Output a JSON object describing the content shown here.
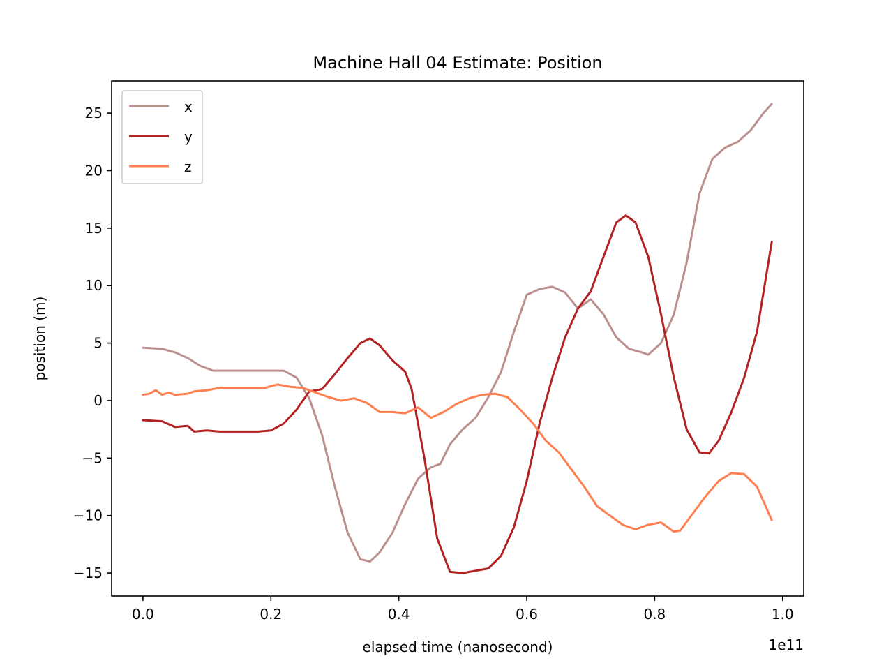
{
  "chart_data": {
    "type": "line",
    "title": "Machine Hall 04 Estimate: Position",
    "xlabel": "elapsed time (nanosecond)",
    "ylabel": "position (m)",
    "x_offset_label": "1e11",
    "xlim": [
      -0.049,
      1.033
    ],
    "ylim": [
      -17.0,
      27.8
    ],
    "x_ticks": [
      0.0,
      0.2,
      0.4,
      0.6,
      0.8,
      1.0
    ],
    "x_tick_labels": [
      "0.0",
      "0.2",
      "0.4",
      "0.6",
      "0.8",
      "1.0"
    ],
    "y_ticks": [
      -15,
      -10,
      -5,
      0,
      5,
      10,
      15,
      20,
      25
    ],
    "y_tick_labels": [
      "−15",
      "−10",
      "−5",
      "0",
      "5",
      "10",
      "15",
      "20",
      "25"
    ],
    "grid": false,
    "legend_position": "upper-left",
    "series": [
      {
        "name": "x",
        "color": "#bc8f8f",
        "points": [
          [
            0.0,
            4.6
          ],
          [
            0.03,
            4.5
          ],
          [
            0.05,
            4.2
          ],
          [
            0.07,
            3.7
          ],
          [
            0.09,
            3.0
          ],
          [
            0.11,
            2.6
          ],
          [
            0.14,
            2.6
          ],
          [
            0.17,
            2.6
          ],
          [
            0.2,
            2.6
          ],
          [
            0.22,
            2.6
          ],
          [
            0.24,
            2.0
          ],
          [
            0.26,
            0.2
          ],
          [
            0.28,
            -3.0
          ],
          [
            0.3,
            -7.5
          ],
          [
            0.32,
            -11.5
          ],
          [
            0.34,
            -13.8
          ],
          [
            0.355,
            -14.0
          ],
          [
            0.37,
            -13.2
          ],
          [
            0.39,
            -11.5
          ],
          [
            0.41,
            -9.0
          ],
          [
            0.43,
            -6.8
          ],
          [
            0.45,
            -5.8
          ],
          [
            0.465,
            -5.5
          ],
          [
            0.48,
            -3.8
          ],
          [
            0.5,
            -2.5
          ],
          [
            0.52,
            -1.5
          ],
          [
            0.54,
            0.3
          ],
          [
            0.56,
            2.5
          ],
          [
            0.58,
            6.0
          ],
          [
            0.6,
            9.2
          ],
          [
            0.62,
            9.7
          ],
          [
            0.64,
            9.9
          ],
          [
            0.66,
            9.4
          ],
          [
            0.68,
            8.0
          ],
          [
            0.7,
            8.8
          ],
          [
            0.72,
            7.5
          ],
          [
            0.74,
            5.5
          ],
          [
            0.76,
            4.5
          ],
          [
            0.78,
            4.2
          ],
          [
            0.79,
            4.0
          ],
          [
            0.81,
            5.0
          ],
          [
            0.83,
            7.5
          ],
          [
            0.85,
            12.0
          ],
          [
            0.87,
            18.0
          ],
          [
            0.89,
            21.0
          ],
          [
            0.91,
            22.0
          ],
          [
            0.93,
            22.5
          ],
          [
            0.95,
            23.5
          ],
          [
            0.97,
            25.0
          ],
          [
            0.983,
            25.8
          ]
        ]
      },
      {
        "name": "y",
        "color": "#b22222",
        "points": [
          [
            0.0,
            -1.7
          ],
          [
            0.03,
            -1.8
          ],
          [
            0.05,
            -2.3
          ],
          [
            0.07,
            -2.2
          ],
          [
            0.08,
            -2.7
          ],
          [
            0.1,
            -2.6
          ],
          [
            0.12,
            -2.7
          ],
          [
            0.15,
            -2.7
          ],
          [
            0.18,
            -2.7
          ],
          [
            0.2,
            -2.6
          ],
          [
            0.22,
            -2.0
          ],
          [
            0.24,
            -0.8
          ],
          [
            0.26,
            0.8
          ],
          [
            0.28,
            1.0
          ],
          [
            0.3,
            2.3
          ],
          [
            0.32,
            3.7
          ],
          [
            0.34,
            5.0
          ],
          [
            0.355,
            5.4
          ],
          [
            0.37,
            4.8
          ],
          [
            0.39,
            3.5
          ],
          [
            0.41,
            2.5
          ],
          [
            0.42,
            1.0
          ],
          [
            0.44,
            -5.0
          ],
          [
            0.46,
            -12.0
          ],
          [
            0.48,
            -14.9
          ],
          [
            0.5,
            -15.0
          ],
          [
            0.52,
            -14.8
          ],
          [
            0.54,
            -14.6
          ],
          [
            0.56,
            -13.5
          ],
          [
            0.58,
            -11.0
          ],
          [
            0.6,
            -7.0
          ],
          [
            0.62,
            -2.0
          ],
          [
            0.64,
            2.0
          ],
          [
            0.66,
            5.5
          ],
          [
            0.68,
            8.0
          ],
          [
            0.7,
            9.5
          ],
          [
            0.72,
            12.5
          ],
          [
            0.74,
            15.5
          ],
          [
            0.755,
            16.1
          ],
          [
            0.77,
            15.5
          ],
          [
            0.79,
            12.5
          ],
          [
            0.81,
            7.5
          ],
          [
            0.83,
            2.0
          ],
          [
            0.85,
            -2.5
          ],
          [
            0.87,
            -4.5
          ],
          [
            0.885,
            -4.6
          ],
          [
            0.9,
            -3.5
          ],
          [
            0.92,
            -1.0
          ],
          [
            0.94,
            2.0
          ],
          [
            0.96,
            6.0
          ],
          [
            0.983,
            13.8
          ]
        ]
      },
      {
        "name": "z",
        "color": "#ff7f50",
        "points": [
          [
            0.0,
            0.5
          ],
          [
            0.01,
            0.6
          ],
          [
            0.02,
            0.9
          ],
          [
            0.03,
            0.5
          ],
          [
            0.04,
            0.7
          ],
          [
            0.05,
            0.5
          ],
          [
            0.07,
            0.6
          ],
          [
            0.08,
            0.8
          ],
          [
            0.1,
            0.9
          ],
          [
            0.12,
            1.1
          ],
          [
            0.15,
            1.1
          ],
          [
            0.19,
            1.1
          ],
          [
            0.21,
            1.4
          ],
          [
            0.23,
            1.2
          ],
          [
            0.25,
            1.1
          ],
          [
            0.27,
            0.7
          ],
          [
            0.29,
            0.3
          ],
          [
            0.31,
            0.0
          ],
          [
            0.33,
            0.2
          ],
          [
            0.35,
            -0.2
          ],
          [
            0.37,
            -1.0
          ],
          [
            0.39,
            -1.0
          ],
          [
            0.41,
            -1.1
          ],
          [
            0.43,
            -0.6
          ],
          [
            0.45,
            -1.5
          ],
          [
            0.47,
            -1.0
          ],
          [
            0.49,
            -0.3
          ],
          [
            0.51,
            0.2
          ],
          [
            0.53,
            0.5
          ],
          [
            0.55,
            0.6
          ],
          [
            0.57,
            0.3
          ],
          [
            0.59,
            -0.8
          ],
          [
            0.61,
            -2.0
          ],
          [
            0.63,
            -3.5
          ],
          [
            0.65,
            -4.5
          ],
          [
            0.67,
            -6.0
          ],
          [
            0.69,
            -7.5
          ],
          [
            0.71,
            -9.2
          ],
          [
            0.73,
            -10.0
          ],
          [
            0.75,
            -10.8
          ],
          [
            0.77,
            -11.2
          ],
          [
            0.79,
            -10.8
          ],
          [
            0.81,
            -10.6
          ],
          [
            0.83,
            -11.4
          ],
          [
            0.84,
            -11.3
          ],
          [
            0.86,
            -9.8
          ],
          [
            0.88,
            -8.3
          ],
          [
            0.9,
            -7.0
          ],
          [
            0.92,
            -6.3
          ],
          [
            0.94,
            -6.4
          ],
          [
            0.96,
            -7.5
          ],
          [
            0.983,
            -10.4
          ]
        ]
      }
    ]
  }
}
